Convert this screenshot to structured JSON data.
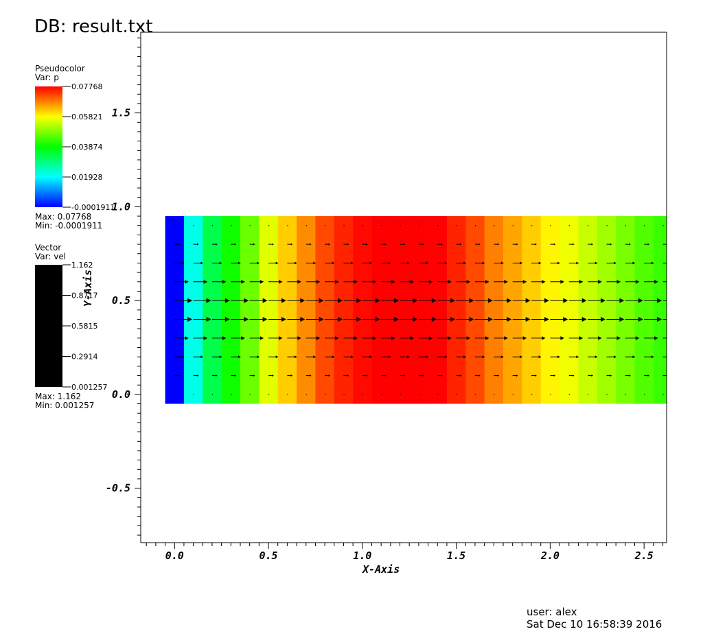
{
  "db_title": "DB: result.txt",
  "pseudocolor_legend": {
    "title": "Pseudocolor",
    "var_label": "Var: p",
    "ticks": [
      "0.07768",
      "0.05821",
      "0.03874",
      "0.01928",
      "-0.0001911"
    ],
    "max_label": "Max:  0.07768",
    "min_label": "Min: -0.0001911",
    "colormap": [
      "#0000ff",
      "#00ffff",
      "#00ff00",
      "#ffff00",
      "#ff0000"
    ]
  },
  "vector_legend": {
    "title": "Vector",
    "var_label": "Var: vel",
    "ticks": [
      "1.162",
      "0.8717",
      "0.5815",
      "0.2914",
      "0.001257"
    ],
    "max_label": "Max:  1.162",
    "min_label": "Min:  0.001257",
    "color": "#000000"
  },
  "footer": {
    "user": "user: alex",
    "date": "Sat Dec 10 16:58:39 2016"
  },
  "chart_data": {
    "type": "heatmap",
    "xlabel": "X-Axis",
    "ylabel": "Y-Axis",
    "xlim": [
      -0.18,
      2.62
    ],
    "ylim": [
      -0.79,
      1.93
    ],
    "x_ticks": [
      0.0,
      0.5,
      1.0,
      1.5,
      2.0,
      2.5
    ],
    "x_tick_labels": [
      "0.0",
      "0.5",
      "1.0",
      "1.5",
      "2.0",
      "2.5"
    ],
    "y_ticks": [
      -0.5,
      0.0,
      0.5,
      1.0,
      1.5
    ],
    "y_tick_labels": [
      "-0.5",
      "0.0",
      "0.5",
      "1.0",
      "1.5"
    ],
    "domain": {
      "x": [
        -0.05,
        2.62
      ],
      "y": [
        -0.05,
        0.95
      ]
    },
    "cell_width": 0.1,
    "p_columns": [
      -0.0002,
      0.021,
      0.033,
      0.04,
      0.047,
      0.056,
      0.062,
      0.067,
      0.072,
      0.075,
      0.077,
      0.0777,
      0.0777,
      0.0777,
      0.0776,
      0.075,
      0.072,
      0.068,
      0.065,
      0.062,
      0.059,
      0.057,
      0.054,
      0.051,
      0.048,
      0.045,
      0.043,
      0.041
    ],
    "vector_rows_y": [
      0.9,
      0.8,
      0.7,
      0.6,
      0.5,
      0.4,
      0.3,
      0.2,
      0.1,
      0.0
    ],
    "vector_columns_x": [
      0.0,
      0.1,
      0.2,
      0.3,
      0.4,
      0.5,
      0.6,
      0.7,
      0.8,
      0.9,
      1.0,
      1.1,
      1.2,
      1.3,
      1.4,
      1.5,
      1.6,
      1.7,
      1.8,
      1.9,
      2.0,
      2.1,
      2.2,
      2.3,
      2.4,
      2.5,
      2.6
    ],
    "vector_row_speeds": [
      0.02,
      0.35,
      0.65,
      0.92,
      1.16,
      1.16,
      0.92,
      0.65,
      0.35,
      0.02
    ],
    "vmin": -0.0001911,
    "vmax": 0.07768,
    "vel_max": 1.162
  }
}
